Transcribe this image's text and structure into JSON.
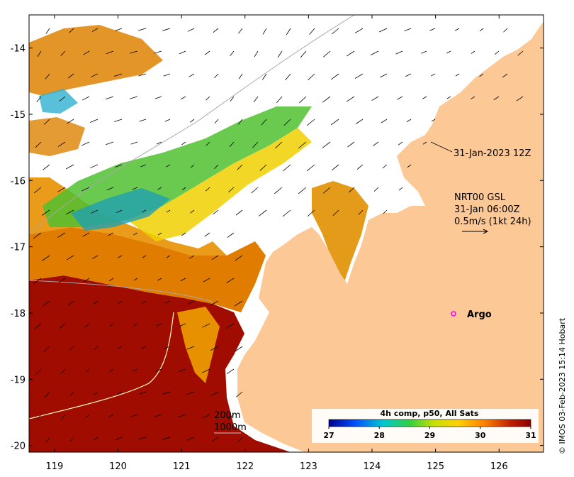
{
  "map": {
    "lat_ticks": [
      "-14",
      "-15",
      "-16",
      "-17",
      "-18",
      "-19",
      "-20"
    ],
    "lon_ticks": [
      "119",
      "120",
      "121",
      "122",
      "123",
      "124",
      "125",
      "126"
    ],
    "extent": {
      "lon_min": 118.6,
      "lon_max": 126.7,
      "lat_min": -20.1,
      "lat_max": -13.5
    },
    "colors": {
      "land": "#fcc896",
      "sea_warm": "#a00c00",
      "sea_mid": "#e07c00",
      "sea_yellow": "#f0d000",
      "sea_green": "#50c030",
      "sea_teal": "#20a0b0",
      "cloud": "#ffffff",
      "argo": "#ff00ff"
    }
  },
  "labels": {
    "time_stamp": "31-Jan-2023 12Z",
    "current_model": "NRT00 GSL",
    "current_time": "31-Jan 06:00Z",
    "current_scale": "0.5m/s (1kt 24h)",
    "argo": "Argo",
    "isobath_200": "200m",
    "isobath_1000": "1000m",
    "credit": "© IMOS 03-Feb-2023 15:14 Hobart"
  },
  "argo_point": {
    "lon": 125.3,
    "lat": -18.0
  },
  "colorbar": {
    "title": "4h comp, p50, All Sats",
    "ticks": [
      "27",
      "28",
      "29",
      "30",
      "31"
    ],
    "min": 27,
    "max": 31,
    "stops": [
      "#00008c",
      "#0050ff",
      "#00c8d0",
      "#30d040",
      "#c8e000",
      "#ffd000",
      "#ff8000",
      "#c02000",
      "#8c0000"
    ]
  }
}
